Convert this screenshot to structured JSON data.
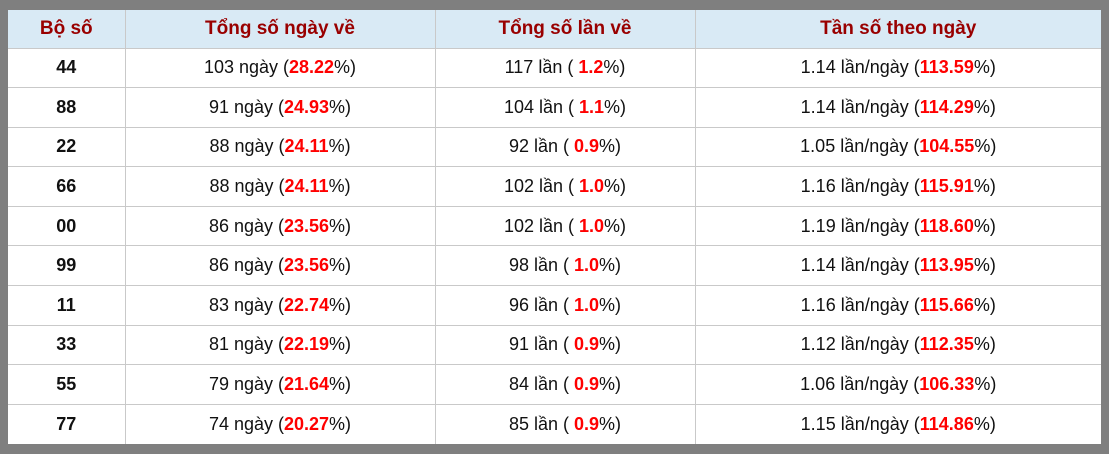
{
  "colors": {
    "frame": "#7f7f7f",
    "header-bg": "#d9eaf5",
    "header-text": "#990000",
    "hl": "#ff0000",
    "grid": "#c9c9c9",
    "text": "#111111"
  },
  "table": {
    "columns": [
      "Bộ số",
      "Tổng số ngày về",
      "Tổng số lần về",
      "Tần số theo ngày"
    ],
    "rows": [
      {
        "pair": "44",
        "days": {
          "prefix": "103 ngày (",
          "value": "28.22",
          "suffix": "%)"
        },
        "times": {
          "prefix": "117 lần ( ",
          "value": "1.2",
          "suffix": "%)"
        },
        "freq": {
          "prefix": "1.14 lần/ngày (",
          "value": "113.59",
          "suffix": "%)"
        }
      },
      {
        "pair": "88",
        "days": {
          "prefix": "91 ngày (",
          "value": "24.93",
          "suffix": "%)"
        },
        "times": {
          "prefix": "104 lần ( ",
          "value": "1.1",
          "suffix": "%)"
        },
        "freq": {
          "prefix": "1.14 lần/ngày (",
          "value": "114.29",
          "suffix": "%)"
        }
      },
      {
        "pair": "22",
        "days": {
          "prefix": "88 ngày (",
          "value": "24.11",
          "suffix": "%)"
        },
        "times": {
          "prefix": "92 lần ( ",
          "value": "0.9",
          "suffix": "%)"
        },
        "freq": {
          "prefix": "1.05 lần/ngày (",
          "value": "104.55",
          "suffix": "%)"
        }
      },
      {
        "pair": "66",
        "days": {
          "prefix": "88 ngày (",
          "value": "24.11",
          "suffix": "%)"
        },
        "times": {
          "prefix": "102 lần ( ",
          "value": "1.0",
          "suffix": "%)"
        },
        "freq": {
          "prefix": "1.16 lần/ngày (",
          "value": "115.91",
          "suffix": "%)"
        }
      },
      {
        "pair": "00",
        "days": {
          "prefix": "86 ngày (",
          "value": "23.56",
          "suffix": "%)"
        },
        "times": {
          "prefix": "102 lần ( ",
          "value": "1.0",
          "suffix": "%)"
        },
        "freq": {
          "prefix": "1.19 lần/ngày (",
          "value": "118.60",
          "suffix": "%)"
        }
      },
      {
        "pair": "99",
        "days": {
          "prefix": "86 ngày (",
          "value": "23.56",
          "suffix": "%)"
        },
        "times": {
          "prefix": "98 lần ( ",
          "value": "1.0",
          "suffix": "%)"
        },
        "freq": {
          "prefix": "1.14 lần/ngày (",
          "value": "113.95",
          "suffix": "%)"
        }
      },
      {
        "pair": "11",
        "days": {
          "prefix": "83 ngày (",
          "value": "22.74",
          "suffix": "%)"
        },
        "times": {
          "prefix": "96 lần ( ",
          "value": "1.0",
          "suffix": "%)"
        },
        "freq": {
          "prefix": "1.16 lần/ngày (",
          "value": "115.66",
          "suffix": "%)"
        }
      },
      {
        "pair": "33",
        "days": {
          "prefix": "81 ngày (",
          "value": "22.19",
          "suffix": "%)"
        },
        "times": {
          "prefix": "91 lần ( ",
          "value": "0.9",
          "suffix": "%)"
        },
        "freq": {
          "prefix": "1.12 lần/ngày (",
          "value": "112.35",
          "suffix": "%)"
        }
      },
      {
        "pair": "55",
        "days": {
          "prefix": "79 ngày (",
          "value": "21.64",
          "suffix": "%)"
        },
        "times": {
          "prefix": "84 lần ( ",
          "value": "0.9",
          "suffix": "%)"
        },
        "freq": {
          "prefix": "1.06 lần/ngày (",
          "value": "106.33",
          "suffix": "%)"
        }
      },
      {
        "pair": "77",
        "days": {
          "prefix": "74 ngày (",
          "value": "20.27",
          "suffix": "%)"
        },
        "times": {
          "prefix": "85 lần ( ",
          "value": "0.9",
          "suffix": "%)"
        },
        "freq": {
          "prefix": "1.15 lần/ngày (",
          "value": "114.86",
          "suffix": "%)"
        }
      }
    ]
  }
}
